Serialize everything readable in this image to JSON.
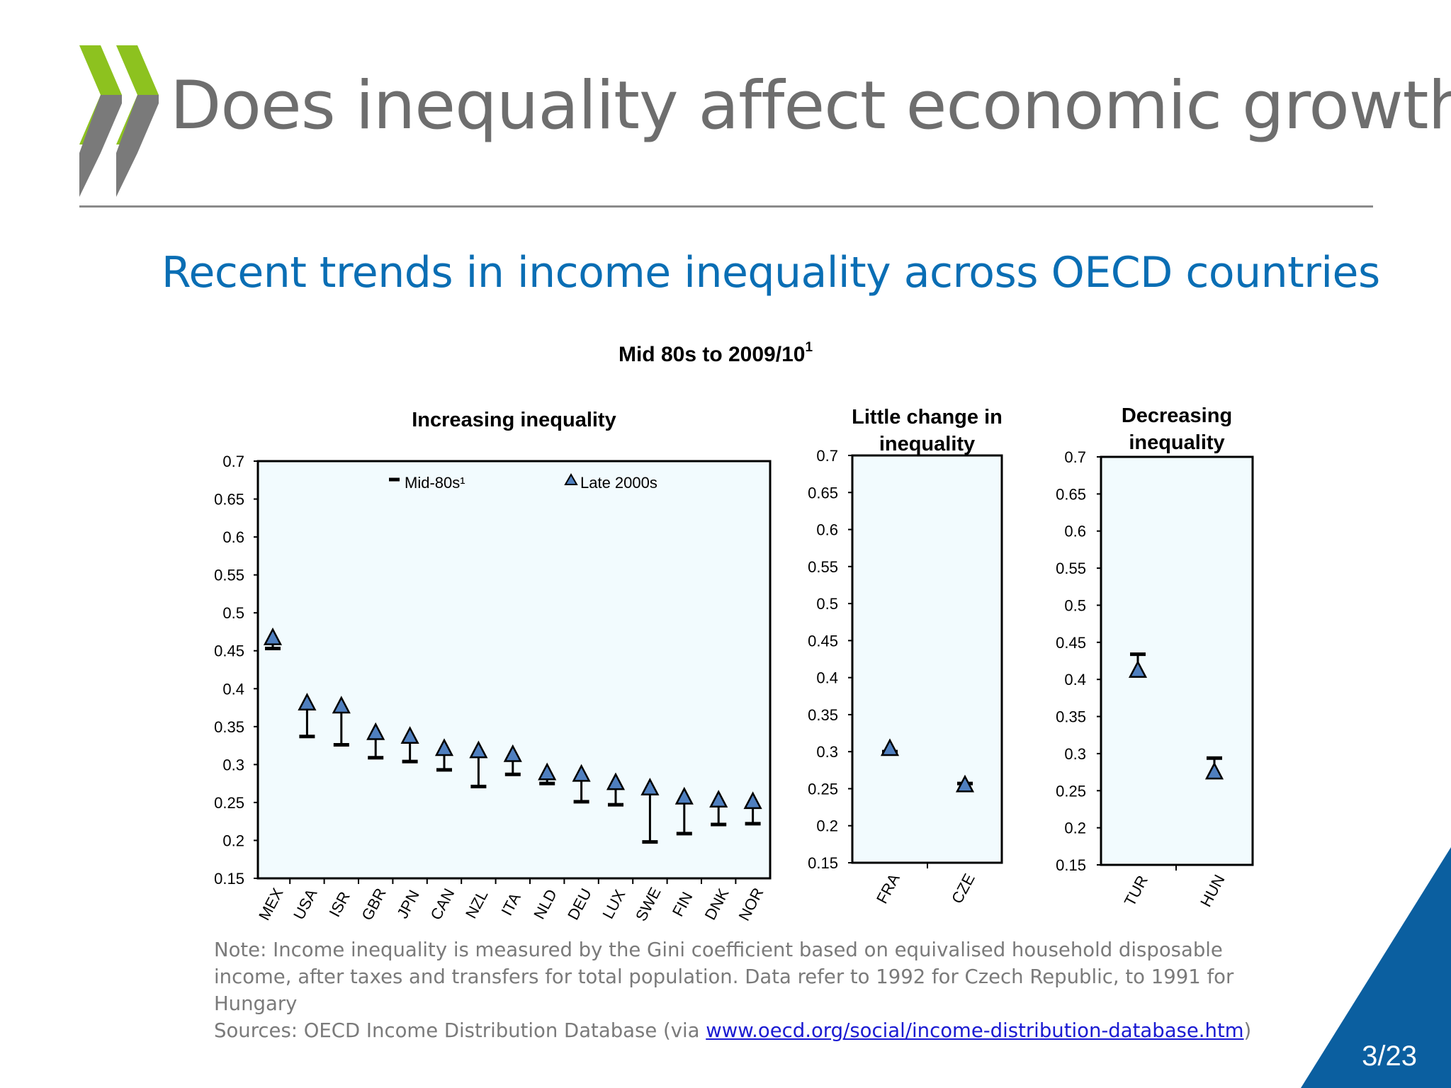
{
  "slide": {
    "title": "Does inequality affect economic growth?",
    "subtitle": "Recent trends in income inequality across OECD countries",
    "page": "3/23",
    "colors": {
      "accent_green": "#8dc21f",
      "logo_gray": "#7a7a7a",
      "subtitle_blue": "#0a6eb4",
      "corner_blue": "#0b5fa0",
      "plot_bg": "#f2fbfe",
      "marker": "#4f7fbf"
    }
  },
  "note": {
    "line1": "Note: Income inequality is measured by the Gini coefficient based on equivalised household disposable",
    "line2": "income, after taxes and transfers for total population. Data refer to  1992 for Czech Republic, to 1991 for Hungary",
    "line3_prefix": "Sources: OECD Income Distribution Database (via ",
    "link": "www.oecd.org/social/income-distribution-database.htm",
    "line3_suffix": ")"
  },
  "chart_data": {
    "type": "scatter",
    "title": "Mid 80s to 2009/10",
    "title_sup": "1",
    "ylim": [
      0.15,
      0.7
    ],
    "yticks": [
      "0.15",
      "0.2",
      "0.25",
      "0.3",
      "0.35",
      "0.4",
      "0.45",
      "0.5",
      "0.55",
      "0.6",
      "0.65",
      "0.7"
    ],
    "legend": {
      "mid": "Mid-80s¹",
      "late": "Late 2000s",
      "position": "top"
    },
    "panels": [
      {
        "title": [
          "Increasing inequality"
        ],
        "categories": [
          "MEX",
          "USA",
          "ISR",
          "GBR",
          "JPN",
          "CAN",
          "NZL",
          "ITA",
          "NLD",
          "DEU",
          "LUX",
          "SWE",
          "FIN",
          "DNK",
          "NOR"
        ],
        "mid_80s": [
          0.453,
          0.337,
          0.326,
          0.309,
          0.304,
          0.293,
          0.271,
          0.287,
          0.275,
          0.251,
          0.247,
          0.198,
          0.209,
          0.221,
          0.222
        ],
        "late_2000s": [
          0.466,
          0.38,
          0.376,
          0.341,
          0.336,
          0.32,
          0.317,
          0.312,
          0.288,
          0.286,
          0.275,
          0.268,
          0.256,
          0.252,
          0.25
        ]
      },
      {
        "title": [
          "Little change in",
          "inequality"
        ],
        "categories": [
          "FRA",
          "CZE"
        ],
        "mid_80s": [
          0.3,
          0.257
        ],
        "late_2000s": [
          0.303,
          0.254
        ]
      },
      {
        "title": [
          "Decreasing",
          "inequality"
        ],
        "categories": [
          "TUR",
          "HUN"
        ],
        "mid_80s": [
          0.434,
          0.294
        ],
        "late_2000s": [
          0.411,
          0.274
        ]
      }
    ]
  }
}
